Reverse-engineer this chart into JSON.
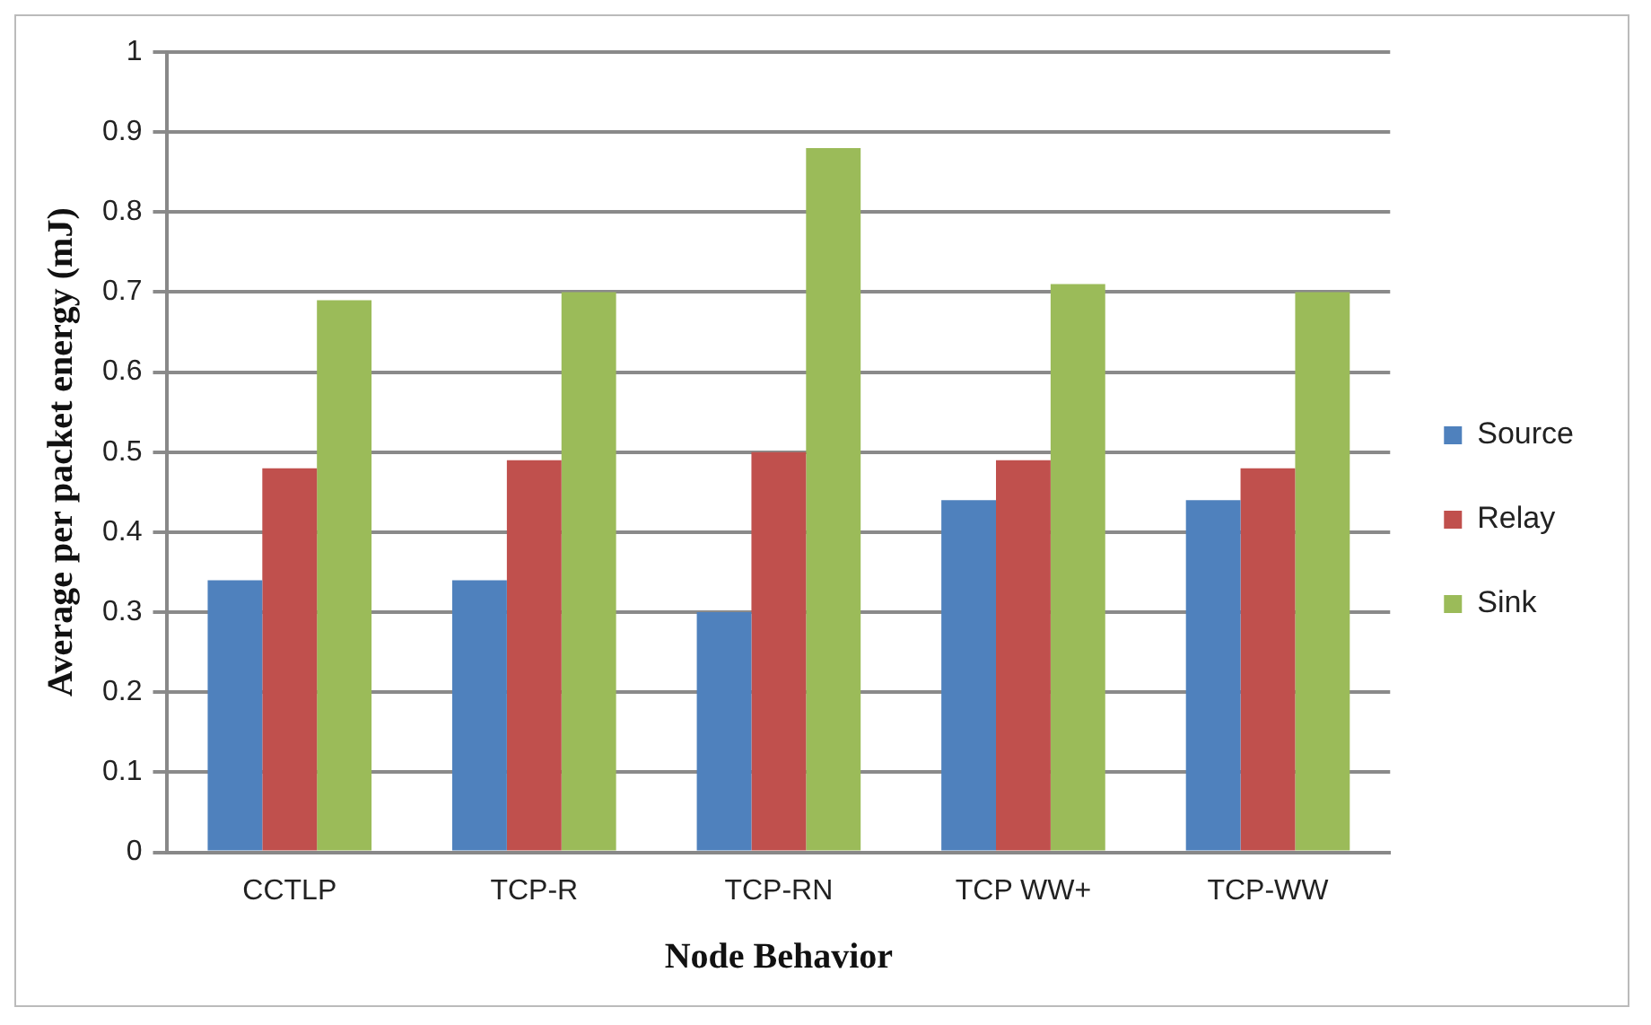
{
  "chart_data": {
    "type": "bar",
    "xlabel": "Node Behavior",
    "ylabel": "Average per packet energy (mJ)",
    "categories": [
      "CCTLP",
      "TCP-R",
      "TCP-RN",
      "TCP WW+",
      "TCP-WW"
    ],
    "series": [
      {
        "name": "Source",
        "color": "#4f81bd",
        "values": [
          0.34,
          0.34,
          0.3,
          0.44,
          0.44
        ]
      },
      {
        "name": "Relay",
        "color": "#c0504d",
        "values": [
          0.48,
          0.49,
          0.5,
          0.49,
          0.48
        ]
      },
      {
        "name": "Sink",
        "color": "#9bbb59",
        "values": [
          0.69,
          0.7,
          0.88,
          0.71,
          0.7
        ]
      }
    ],
    "ylim": [
      0,
      1
    ],
    "yticks": [
      0,
      0.1,
      0.2,
      0.3,
      0.4,
      0.5,
      0.6,
      0.7,
      0.8,
      0.9,
      1
    ],
    "grid": "y",
    "legend": "right"
  }
}
